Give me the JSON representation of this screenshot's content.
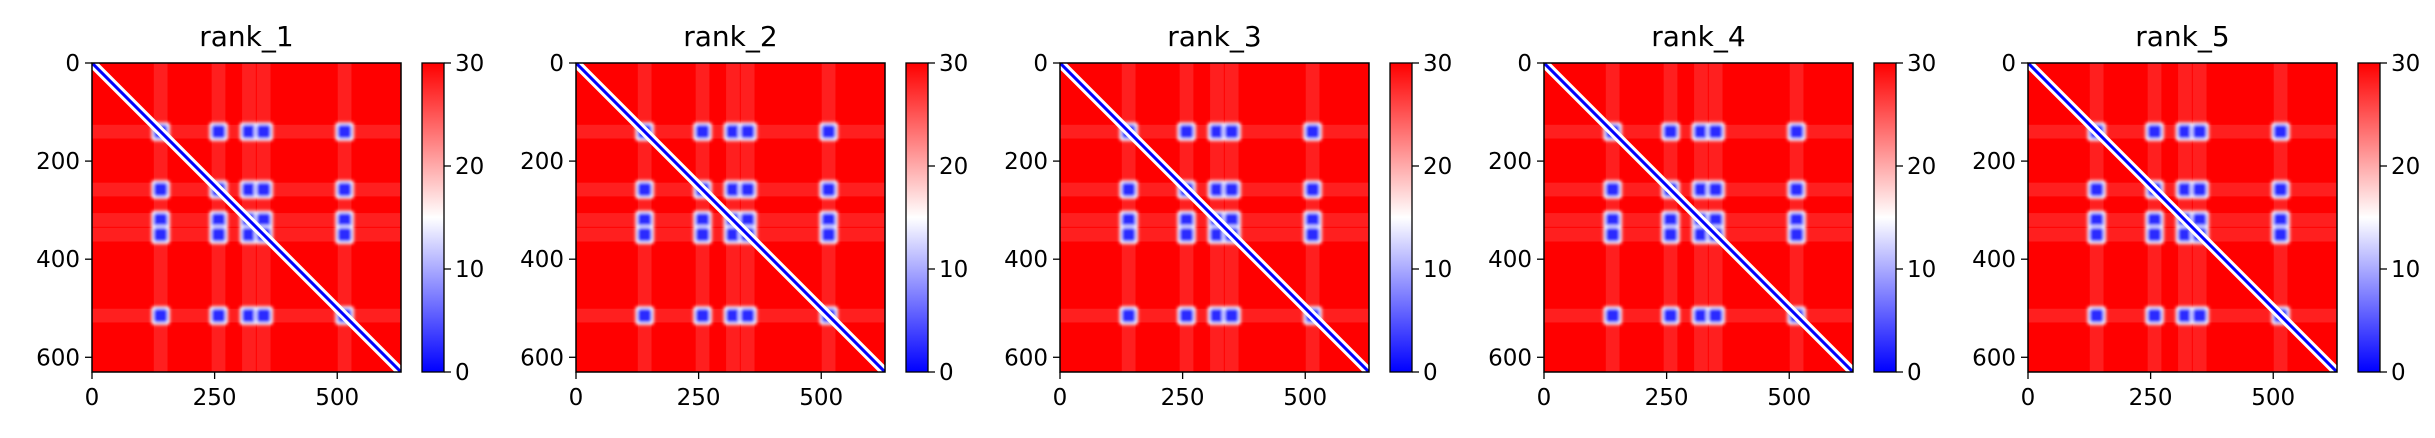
{
  "chart_data": [
    {
      "type": "heatmap",
      "title": "rank_1",
      "x_ticks": [
        "0",
        "250",
        "500"
      ],
      "y_ticks": [
        "0",
        "200",
        "400",
        "600"
      ],
      "colorbar_ticks": [
        "0",
        "10",
        "20",
        "30"
      ],
      "xlim": [
        0,
        630
      ],
      "ylim": [
        630,
        0
      ],
      "vmin": 0,
      "vmax": 30,
      "colormap": [
        "#0000ff",
        "#ffffff",
        "#ff0000"
      ],
      "domain_blocks": [
        140,
        258,
        320,
        350,
        515
      ],
      "diagonal": true
    },
    {
      "type": "heatmap",
      "title": "rank_2",
      "x_ticks": [
        "0",
        "250",
        "500"
      ],
      "y_ticks": [
        "0",
        "200",
        "400",
        "600"
      ],
      "colorbar_ticks": [
        "0",
        "10",
        "20",
        "30"
      ],
      "xlim": [
        0,
        630
      ],
      "ylim": [
        630,
        0
      ],
      "vmin": 0,
      "vmax": 30,
      "colormap": [
        "#0000ff",
        "#ffffff",
        "#ff0000"
      ],
      "domain_blocks": [
        140,
        258,
        320,
        350,
        515
      ],
      "diagonal": true
    },
    {
      "type": "heatmap",
      "title": "rank_3",
      "x_ticks": [
        "0",
        "250",
        "500"
      ],
      "y_ticks": [
        "0",
        "200",
        "400",
        "600"
      ],
      "colorbar_ticks": [
        "0",
        "10",
        "20",
        "30"
      ],
      "xlim": [
        0,
        630
      ],
      "ylim": [
        630,
        0
      ],
      "vmin": 0,
      "vmax": 30,
      "colormap": [
        "#0000ff",
        "#ffffff",
        "#ff0000"
      ],
      "domain_blocks": [
        140,
        258,
        320,
        350,
        515
      ],
      "diagonal": true
    },
    {
      "type": "heatmap",
      "title": "rank_4",
      "x_ticks": [
        "0",
        "250",
        "500"
      ],
      "y_ticks": [
        "0",
        "200",
        "400",
        "600"
      ],
      "colorbar_ticks": [
        "0",
        "10",
        "20",
        "30"
      ],
      "xlim": [
        0,
        630
      ],
      "ylim": [
        630,
        0
      ],
      "vmin": 0,
      "vmax": 30,
      "colormap": [
        "#0000ff",
        "#ffffff",
        "#ff0000"
      ],
      "domain_blocks": [
        140,
        258,
        320,
        350,
        515
      ],
      "diagonal": true
    },
    {
      "type": "heatmap",
      "title": "rank_5",
      "x_ticks": [
        "0",
        "250",
        "500"
      ],
      "y_ticks": [
        "0",
        "200",
        "400",
        "600"
      ],
      "colorbar_ticks": [
        "0",
        "10",
        "20",
        "30"
      ],
      "xlim": [
        0,
        630
      ],
      "ylim": [
        630,
        0
      ],
      "vmin": 0,
      "vmax": 30,
      "colormap": [
        "#0000ff",
        "#ffffff",
        "#ff0000"
      ],
      "domain_blocks": [
        140,
        258,
        320,
        350,
        515
      ],
      "diagonal": true
    }
  ]
}
